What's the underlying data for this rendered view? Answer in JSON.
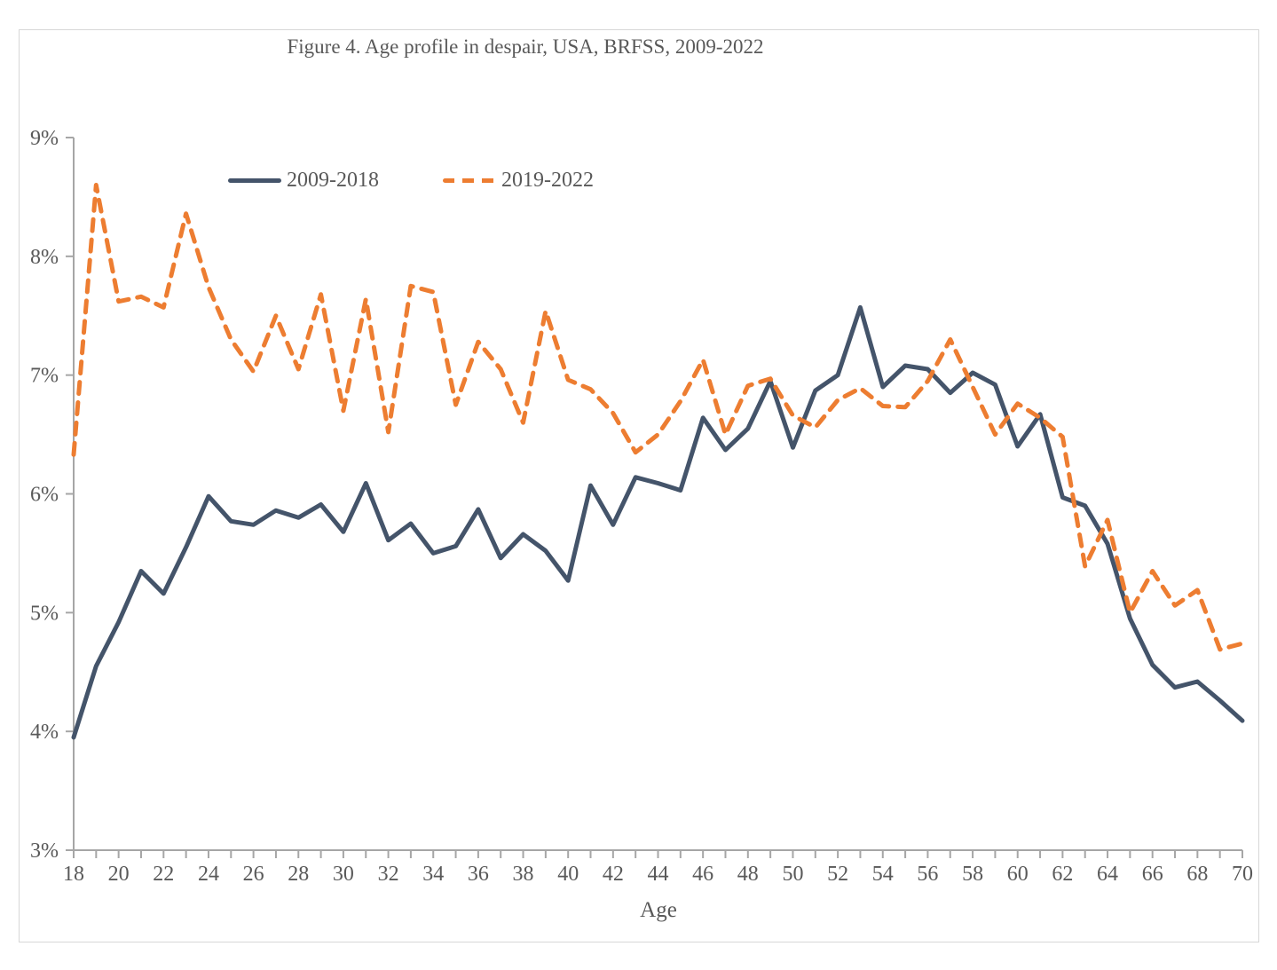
{
  "figure": {
    "title": "Figure 4. Age profile in despair, USA, BRFSS, 2009-2022",
    "x_axis_label": "Age"
  },
  "legend": {
    "items": [
      {
        "label": "2009-2018",
        "style": "solid",
        "color": "#44546A"
      },
      {
        "label": "2019-2022",
        "style": "dashed",
        "color": "#ED7D31"
      }
    ]
  },
  "colors": {
    "series_2009_2018": "#44546A",
    "series_2019_2022": "#ED7D31",
    "axis": "#A6A6A6",
    "text": "#595959",
    "frame": "#D7D7D7"
  },
  "chart_data": {
    "type": "line",
    "title": "Figure 4. Age profile in despair, USA, BRFSS, 2009-2022",
    "xlabel": "Age",
    "ylabel": "",
    "xlim": [
      18,
      70
    ],
    "ylim": [
      3,
      9
    ],
    "grid": false,
    "legend_position": "inside-top-left",
    "x_tick_labels": [
      "18",
      "20",
      "22",
      "24",
      "26",
      "28",
      "30",
      "32",
      "34",
      "36",
      "38",
      "40",
      "42",
      "44",
      "46",
      "48",
      "50",
      "52",
      "54",
      "56",
      "58",
      "60",
      "62",
      "64",
      "66",
      "68",
      "70"
    ],
    "y_tick_labels": [
      "3%",
      "4%",
      "5%",
      "6%",
      "7%",
      "8%",
      "9%"
    ],
    "x": [
      18,
      19,
      20,
      21,
      22,
      23,
      24,
      25,
      26,
      27,
      28,
      29,
      30,
      31,
      32,
      33,
      34,
      35,
      36,
      37,
      38,
      39,
      40,
      41,
      42,
      43,
      44,
      45,
      46,
      47,
      48,
      49,
      50,
      51,
      52,
      53,
      54,
      55,
      56,
      57,
      58,
      59,
      60,
      61,
      62,
      63,
      64,
      65,
      66,
      67,
      68,
      69,
      70
    ],
    "series": [
      {
        "name": "2009-2018",
        "style": "solid",
        "color": "#44546A",
        "values": [
          3.95,
          4.55,
          4.92,
          5.35,
          5.16,
          5.55,
          5.98,
          5.77,
          5.74,
          5.86,
          5.8,
          5.91,
          5.68,
          6.09,
          5.61,
          5.75,
          5.5,
          5.56,
          5.87,
          5.46,
          5.66,
          5.52,
          5.27,
          6.07,
          5.74,
          6.14,
          6.09,
          6.03,
          6.64,
          6.37,
          6.55,
          6.95,
          6.39,
          6.87,
          7.0,
          7.57,
          6.9,
          7.08,
          7.05,
          6.85,
          7.02,
          6.92,
          6.4,
          6.67,
          5.97,
          5.9,
          5.58,
          4.95,
          4.56,
          4.37,
          4.42,
          4.26,
          4.09
        ]
      },
      {
        "name": "2019-2022",
        "style": "dashed",
        "color": "#ED7D31",
        "values": [
          6.33,
          8.6,
          7.62,
          7.66,
          7.57,
          8.36,
          7.74,
          7.3,
          7.03,
          7.5,
          7.05,
          7.68,
          6.7,
          7.64,
          6.52,
          7.75,
          7.7,
          6.75,
          7.28,
          7.05,
          6.6,
          7.54,
          6.96,
          6.88,
          6.68,
          6.35,
          6.5,
          6.78,
          7.13,
          6.5,
          6.91,
          6.97,
          6.66,
          6.56,
          6.79,
          6.89,
          6.74,
          6.73,
          6.95,
          7.3,
          6.9,
          6.5,
          6.76,
          6.64,
          6.48,
          5.39,
          5.78,
          5.0,
          5.35,
          5.06,
          5.19,
          4.69,
          4.74
        ]
      }
    ]
  }
}
